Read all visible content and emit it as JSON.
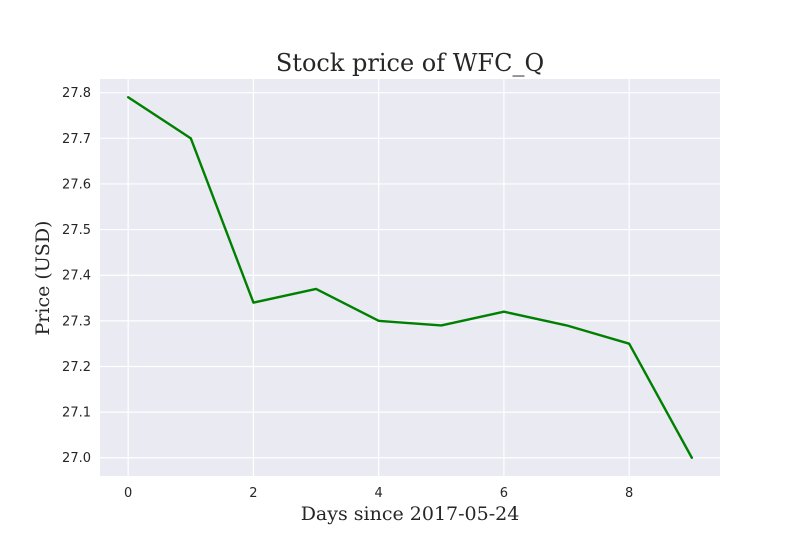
{
  "chart_data": {
    "type": "line",
    "title": "Stock price of WFC_Q",
    "xlabel": "Days since 2017-05-24",
    "ylabel": "Price (USD)",
    "x": [
      0,
      1,
      2,
      3,
      4,
      5,
      6,
      7,
      8,
      9
    ],
    "series": [
      {
        "values": [
          27.79,
          27.7,
          27.34,
          27.37,
          27.3,
          27.29,
          27.32,
          27.29,
          27.25,
          27.0
        ],
        "color": "#008000"
      }
    ],
    "xlim": [
      -0.45,
      9.45
    ],
    "ylim": [
      26.96,
      27.83
    ],
    "xticks": [
      0,
      2,
      4,
      6,
      8
    ],
    "xtick_labels": [
      "0",
      "2",
      "4",
      "6",
      "8"
    ],
    "yticks": [
      27.0,
      27.1,
      27.2,
      27.3,
      27.4,
      27.5,
      27.6,
      27.7,
      27.8
    ],
    "ytick_labels": [
      "27.0",
      "27.1",
      "27.2",
      "27.3",
      "27.4",
      "27.5",
      "27.6",
      "27.7",
      "27.8"
    ],
    "grid": true,
    "legend": "none",
    "style": {
      "plot_background": "#eaeaf2",
      "grid_color": "#ffffff",
      "text_color": "#262626"
    }
  }
}
